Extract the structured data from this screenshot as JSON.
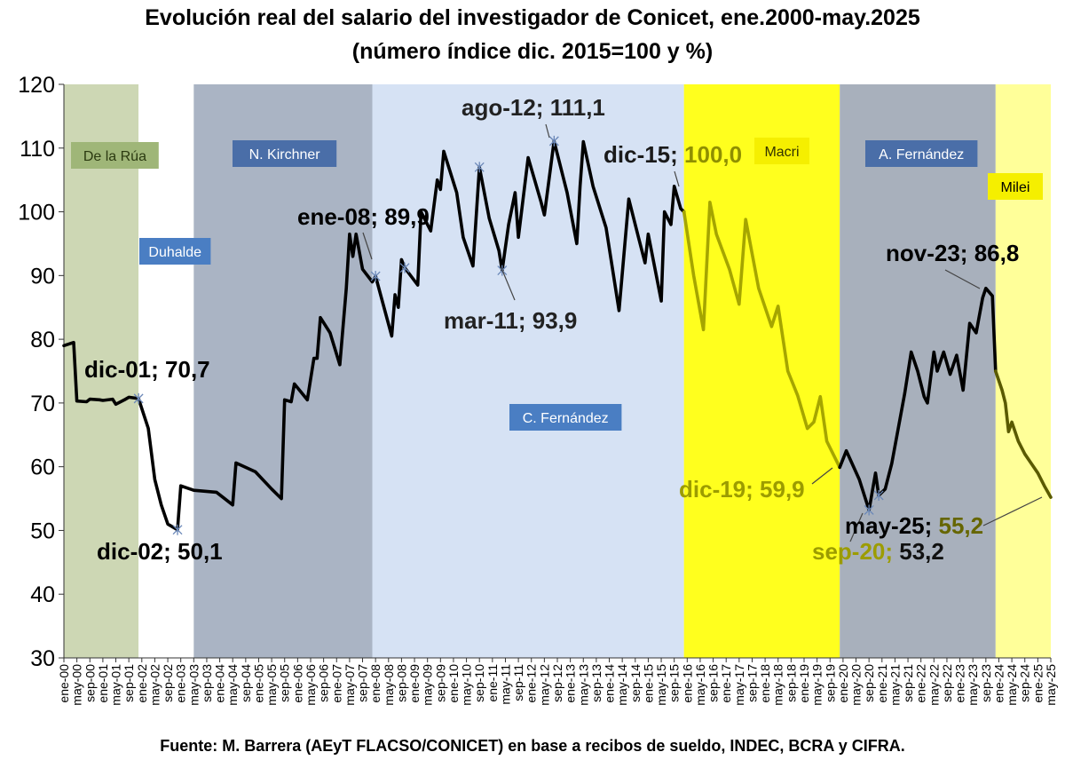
{
  "title_line1": "Evolución real del salario del investigador de Conicet, ene.2000-may.2025",
  "title_line2": "(número índice dic. 2015=100 y %)",
  "footer": "Fuente: M. Barrera (AEyT FLACSO/CONICET) en base a recibos de sueldo, INDEC, BCRA y CIFRA.",
  "chart_data": {
    "type": "line",
    "ylim": [
      30,
      120
    ],
    "yticks": [
      30,
      40,
      50,
      60,
      70,
      80,
      90,
      100,
      110,
      120
    ],
    "grid": false,
    "x_start": "ene-00",
    "x_end": "may-25",
    "x_tick_labels": [
      "ene-00",
      "may-00",
      "sep-00",
      "ene-01",
      "may-01",
      "sep-01",
      "ene-02",
      "may-02",
      "sep-02",
      "ene-03",
      "may-03",
      "sep-03",
      "ene-04",
      "may-04",
      "sep-04",
      "ene-05",
      "may-05",
      "sep-05",
      "ene-06",
      "may-06",
      "sep-06",
      "ene-07",
      "may-07",
      "sep-07",
      "ene-08",
      "may-08",
      "sep-08",
      "ene-09",
      "may-09",
      "sep-09",
      "ene-10",
      "may-10",
      "sep-10",
      "ene-11",
      "may-11",
      "sep-11",
      "ene-12",
      "may-12",
      "sep-12",
      "ene-13",
      "may-13",
      "sep-13",
      "ene-14",
      "may-14",
      "sep-14",
      "ene-15",
      "may-15",
      "sep-15",
      "ene-16",
      "may-16",
      "sep-16",
      "ene-17",
      "may-17",
      "sep-17",
      "ene-18",
      "may-18",
      "sep-18",
      "ene-19",
      "may-19",
      "sep-19",
      "ene-20",
      "may-20",
      "sep-20",
      "ene-21",
      "may-21",
      "sep-21",
      "ene-22",
      "may-22",
      "sep-22",
      "ene-23",
      "may-23",
      "sep-23",
      "ene-24",
      "may-24",
      "sep-24",
      "ene-25",
      "may-25"
    ],
    "periods": [
      {
        "label": "De la Rúa",
        "start": "ene-00",
        "end": "dic-01",
        "color": "#cdd7b4",
        "label_bg": "#9fb678",
        "label_color": "#2b3a10"
      },
      {
        "label": "Duhalde",
        "start": "dic-01",
        "end": "may-03",
        "color": "#ffffff",
        "label_bg": "#4a7ec3",
        "label_color": "#ffffff"
      },
      {
        "label": "N. Kirchner",
        "start": "may-03",
        "end": "dic-07",
        "color": "#aab4c4",
        "label_bg": "#4a6ea8",
        "label_color": "#ffffff"
      },
      {
        "label": "C. Fernández",
        "start": "dic-07",
        "end": "dic-15",
        "color": "#d6e2f4",
        "label_bg": "#4a7ec3",
        "label_color": "#ffffff"
      },
      {
        "label": "Macri",
        "start": "dic-15",
        "end": "dic-19",
        "color": "#ffff1e",
        "label_bg": "#f5ef00",
        "label_color": "#333300"
      },
      {
        "label": "A. Fernández",
        "start": "dic-19",
        "end": "dic-23",
        "color": "#a8b0bc",
        "label_bg": "#4a6ea8",
        "label_color": "#ffffff"
      },
      {
        "label": "Milei",
        "start": "dic-23",
        "end": "may-25",
        "color": "#ffff99",
        "label_bg": "#f5ef00",
        "label_color": "#000000"
      }
    ],
    "series": [
      {
        "color_by_period": {
          "default": "#000000",
          "Macri": "#a5a500",
          "Milei": "#5a5a00"
        },
        "points": [
          [
            "ene-00",
            79.0
          ],
          [
            "abr-00",
            79.5
          ],
          [
            "may-00",
            70.3
          ],
          [
            "ago-00",
            70.2
          ],
          [
            "sep-00",
            70.6
          ],
          [
            "dic-00",
            70.5
          ],
          [
            "ene-01",
            70.4
          ],
          [
            "abr-01",
            70.6
          ],
          [
            "may-01",
            69.8
          ],
          [
            "ago-01",
            70.6
          ],
          [
            "sep-01",
            70.9
          ],
          [
            "dic-01",
            70.7
          ],
          [
            "mar-02",
            66.0
          ],
          [
            "may-02",
            58.0
          ],
          [
            "jul-02",
            54.0
          ],
          [
            "sep-02",
            51.0
          ],
          [
            "dic-02",
            50.1
          ],
          [
            "ene-03",
            57.0
          ],
          [
            "may-03",
            56.3
          ],
          [
            "dic-03",
            56.0
          ],
          [
            "may-04",
            54.0
          ],
          [
            "jun-04",
            60.6
          ],
          [
            "dic-04",
            59.2
          ],
          [
            "may-05",
            56.5
          ],
          [
            "ago-05",
            55.0
          ],
          [
            "sep-05",
            70.5
          ],
          [
            "nov-05",
            70.2
          ],
          [
            "dic-05",
            73.0
          ],
          [
            "abr-06",
            70.5
          ],
          [
            "jun-06",
            77.0
          ],
          [
            "jul-06",
            77.0
          ],
          [
            "ago-06",
            83.4
          ],
          [
            "nov-06",
            81.0
          ],
          [
            "feb-07",
            76.0
          ],
          [
            "abr-07",
            88.0
          ],
          [
            "may-07",
            96.5
          ],
          [
            "jun-07",
            93.0
          ],
          [
            "jul-07",
            96.5
          ],
          [
            "sep-07",
            91.0
          ],
          [
            "dic-07",
            89.0
          ],
          [
            "ene-08",
            89.9
          ],
          [
            "jun-08",
            80.5
          ],
          [
            "jul-08",
            87.0
          ],
          [
            "ago-08",
            85.0
          ],
          [
            "sep-08",
            92.5
          ],
          [
            "oct-08",
            91.2
          ],
          [
            "feb-09",
            88.5
          ],
          [
            "mar-09",
            100.0
          ],
          [
            "jun-09",
            97.0
          ],
          [
            "ago-09",
            105.0
          ],
          [
            "sep-09",
            103.5
          ],
          [
            "oct-09",
            109.5
          ],
          [
            "feb-10",
            103.0
          ],
          [
            "abr-10",
            96.0
          ],
          [
            "jul-10",
            91.5
          ],
          [
            "sep-10",
            107.0
          ],
          [
            "dic-10",
            99.0
          ],
          [
            "mar-11",
            93.9
          ],
          [
            "abr-11",
            90.8
          ],
          [
            "jun-11",
            98.0
          ],
          [
            "ago-11",
            103.0
          ],
          [
            "sep-11",
            96.0
          ],
          [
            "dic-11",
            108.5
          ],
          [
            "abr-12",
            101.5
          ],
          [
            "may-12",
            99.5
          ],
          [
            "ago-12",
            111.1
          ],
          [
            "dic-12",
            103.0
          ],
          [
            "mar-13",
            95.0
          ],
          [
            "abr-13",
            104.0
          ],
          [
            "may-13",
            111.0
          ],
          [
            "ago-13",
            104.0
          ],
          [
            "dic-13",
            97.5
          ],
          [
            "abr-14",
            84.5
          ],
          [
            "jul-14",
            102.0
          ],
          [
            "oct-14",
            96.0
          ],
          [
            "dic-14",
            92.0
          ],
          [
            "ene-15",
            96.5
          ],
          [
            "may-15",
            86.0
          ],
          [
            "jun-15",
            100.0
          ],
          [
            "ago-15",
            98.0
          ],
          [
            "sep-15",
            104.0
          ],
          [
            "nov-15",
            100.5
          ],
          [
            "dic-15",
            100.0
          ],
          [
            "mar-16",
            90.0
          ],
          [
            "jun-16",
            81.5
          ],
          [
            "ago-16",
            101.5
          ],
          [
            "oct-16",
            96.5
          ],
          [
            "feb-17",
            91.0
          ],
          [
            "may-17",
            85.5
          ],
          [
            "jul-17",
            98.8
          ],
          [
            "nov-17",
            88.0
          ],
          [
            "mar-18",
            82.0
          ],
          [
            "may-18",
            85.2
          ],
          [
            "ago-18",
            75.0
          ],
          [
            "nov-18",
            71.2
          ],
          [
            "feb-19",
            66.0
          ],
          [
            "abr-19",
            67.0
          ],
          [
            "jun-19",
            71.0
          ],
          [
            "ago-19",
            64.0
          ],
          [
            "dic-19",
            59.9
          ],
          [
            "feb-20",
            62.5
          ],
          [
            "jun-20",
            58.0
          ],
          [
            "sep-20",
            53.2
          ],
          [
            "nov-20",
            59.0
          ],
          [
            "dic-20",
            55.5
          ],
          [
            "feb-21",
            56.5
          ],
          [
            "abr-21",
            60.5
          ],
          [
            "jun-21",
            66.0
          ],
          [
            "ago-21",
            71.5
          ],
          [
            "oct-21",
            78.0
          ],
          [
            "dic-21",
            75.0
          ],
          [
            "feb-22",
            71.0
          ],
          [
            "mar-22",
            70.0
          ],
          [
            "may-22",
            78.0
          ],
          [
            "jun-22",
            75.0
          ],
          [
            "ago-22",
            78.0
          ],
          [
            "oct-22",
            74.5
          ],
          [
            "dic-22",
            77.5
          ],
          [
            "feb-23",
            72.0
          ],
          [
            "abr-23",
            82.5
          ],
          [
            "jun-23",
            81.0
          ],
          [
            "ago-23",
            86.5
          ],
          [
            "sep-23",
            88.0
          ],
          [
            "nov-23",
            86.8
          ],
          [
            "dic-23",
            75.0
          ],
          [
            "feb-24",
            72.0
          ],
          [
            "mar-24",
            70.0
          ],
          [
            "abr-24",
            65.5
          ],
          [
            "may-24",
            67.0
          ],
          [
            "jul-24",
            64.0
          ],
          [
            "sep-24",
            62.0
          ],
          [
            "nov-24",
            60.5
          ],
          [
            "ene-25",
            59.0
          ],
          [
            "mar-25",
            57.0
          ],
          [
            "may-25",
            55.2
          ]
        ]
      }
    ],
    "markers": [
      "dic-01",
      "dic-02",
      "ene-08",
      "oct-08",
      "sep-10",
      "abr-11",
      "ago-12",
      "sep-20",
      "dic-20"
    ],
    "annotations": [
      {
        "text": "dic-01; 70,7",
        "at": "dic-01",
        "color": "#000000"
      },
      {
        "text": "dic-02; 50,1",
        "at": "dic-02",
        "color": "#000000"
      },
      {
        "text": "ene-08; 89,9",
        "at": "ene-08",
        "color": "#000000"
      },
      {
        "text": "mar-11; 93,9",
        "at": "mar-11",
        "color": "#222222"
      },
      {
        "text": "ago-12; 111,1",
        "at": "ago-12",
        "color": "#222222"
      },
      {
        "text": "dic-15; 100,0",
        "at": "dic-15",
        "color": "#1a1a1a",
        "second_color": "#8f8f00"
      },
      {
        "text": "dic-19; 59,9",
        "at": "dic-19",
        "color": "#9c9c00"
      },
      {
        "text": "sep-20; 53,2",
        "at": "sep-20",
        "color": "#111111",
        "first_color": "#9c9c00"
      },
      {
        "text": "nov-23; 86,8",
        "at": "nov-23",
        "color": "#000000"
      },
      {
        "text": "may-25; 55,2",
        "at": "may-25",
        "color": "#666600",
        "first_color": "#000000"
      }
    ]
  }
}
